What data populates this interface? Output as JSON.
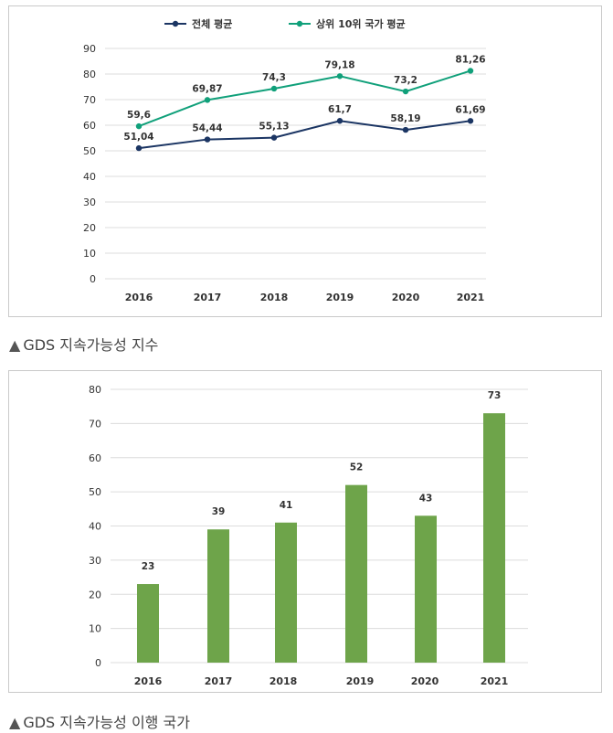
{
  "chart_data": [
    {
      "type": "line",
      "x": [
        "2016",
        "2017",
        "2018",
        "2019",
        "2020",
        "2021"
      ],
      "series": [
        {
          "name": "전체 평균",
          "values": [
            51.04,
            54.44,
            55.13,
            61.7,
            58.19,
            61.69
          ],
          "labels": [
            "51,04",
            "54,44",
            "55,13",
            "61,7",
            "58,19",
            "61,69"
          ],
          "color": "#1b3563"
        },
        {
          "name": "상위 10위 국가 평균",
          "values": [
            59.6,
            69.87,
            74.3,
            79.18,
            73.2,
            81.26
          ],
          "labels": [
            "59,6",
            "69,87",
            "74,3",
            "79,18",
            "73,2",
            "81,26"
          ],
          "color": "#10a07a"
        }
      ],
      "yticks": [
        "0",
        "10",
        "20",
        "30",
        "40",
        "50",
        "60",
        "70",
        "80",
        "90"
      ],
      "ylim": [
        0,
        90
      ],
      "grid": true,
      "legend": "top-center",
      "caption": "GDS 지속가능성 지수"
    },
    {
      "type": "bar",
      "categories": [
        "2016",
        "2017",
        "2018",
        "2019",
        "2020",
        "2021"
      ],
      "values": [
        23,
        39,
        41,
        52,
        43,
        73
      ],
      "color": "#6ea44a",
      "yticks": [
        "0",
        "10",
        "20",
        "30",
        "40",
        "50",
        "60",
        "70",
        "80"
      ],
      "ylim": [
        0,
        80
      ],
      "grid": true,
      "caption": "GDS 지속가능성 이행 국가"
    }
  ],
  "captions": {
    "marker": "▲",
    "first": "GDS 지속가능성 지수",
    "second": "GDS 지속가능성 이행 국가"
  }
}
